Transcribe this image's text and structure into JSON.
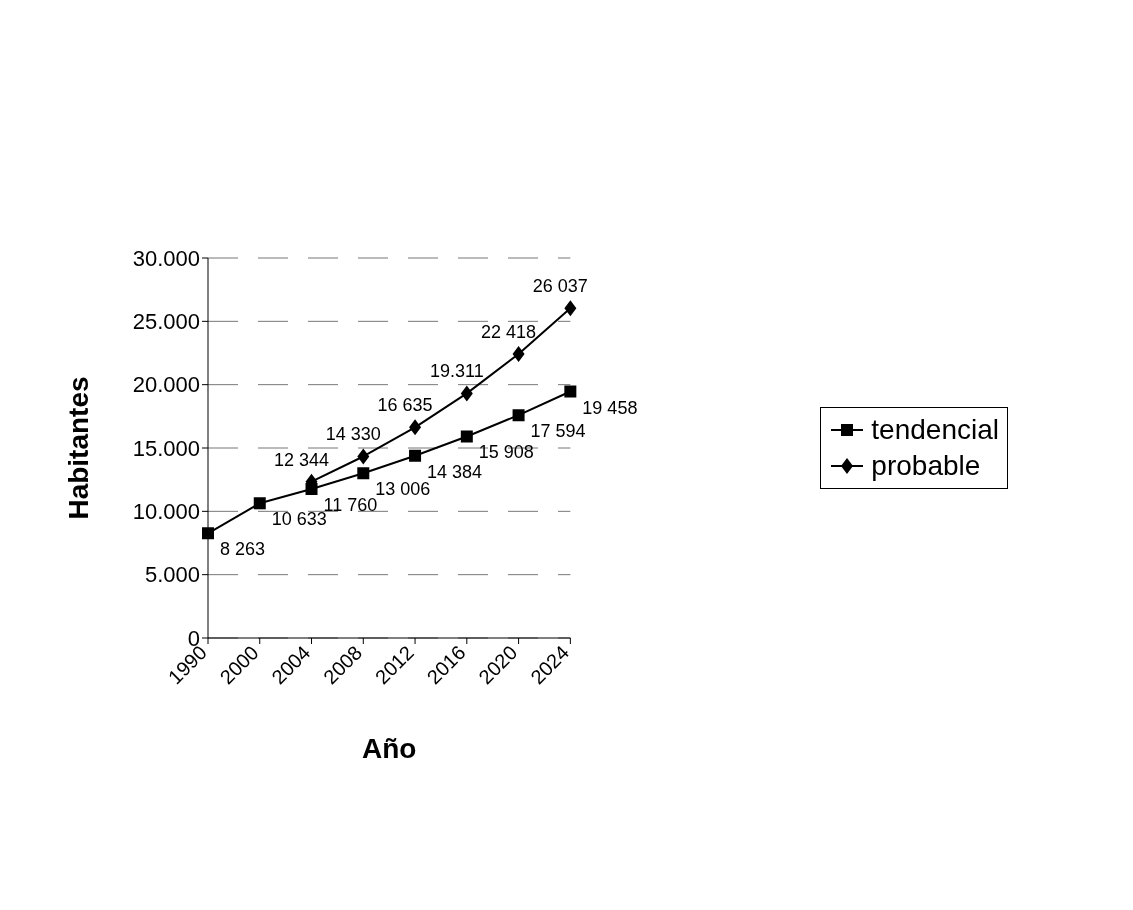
{
  "chart_data": {
    "type": "line",
    "xlabel": "Año",
    "ylabel": "Habitantes",
    "categories": [
      "1990",
      "2000",
      "2004",
      "2008",
      "2012",
      "2016",
      "2020",
      "2024"
    ],
    "series": [
      {
        "name": "tendencial",
        "color": "#000000",
        "marker": "square",
        "values": [
          8263,
          10633,
          11760,
          13006,
          14384,
          15908,
          17594,
          19458
        ],
        "value_labels": [
          "8 263",
          "10 633",
          "11 760",
          "13 006",
          "14 384",
          "15 908",
          "17 594",
          "19 458"
        ]
      },
      {
        "name": "probable",
        "color": "#000000",
        "marker": "diamond",
        "values": [
          null,
          null,
          12344,
          14330,
          16635,
          19311,
          22418,
          26037
        ],
        "value_labels": [
          null,
          null,
          "12 344",
          "14 330",
          "16 635",
          "19.311",
          "22 418",
          "26 037"
        ]
      }
    ],
    "ylim": [
      0,
      30000
    ],
    "yticks": [
      {
        "value": 0,
        "label": "0"
      },
      {
        "value": 5000,
        "label": "5.000"
      },
      {
        "value": 10000,
        "label": "10.000"
      },
      {
        "value": 15000,
        "label": "15.000"
      },
      {
        "value": 20000,
        "label": "20.000"
      },
      {
        "value": 25000,
        "label": "25.000"
      },
      {
        "value": 30000,
        "label": "30.000"
      }
    ],
    "grid": "y",
    "legend": "right"
  }
}
